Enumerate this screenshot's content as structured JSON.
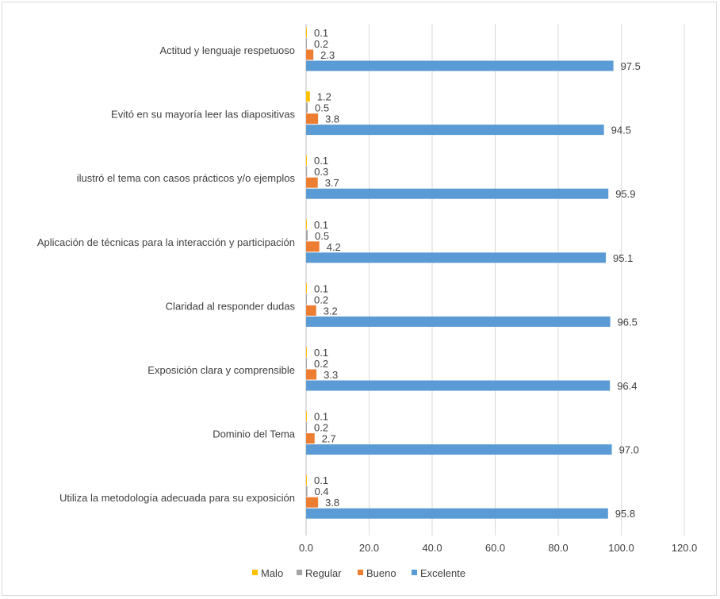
{
  "chart_data": {
    "type": "bar",
    "orientation": "horizontal",
    "categories": [
      "Actitud y lenguaje respetuoso",
      "Evitó en su mayoría leer las diapositivas",
      "ilustró el tema con casos prácticos y/o ejemplos",
      "Aplicación de técnicas para la interacción y participación",
      "Claridad al responder dudas",
      "Exposición clara y comprensible",
      "Dominio del Tema",
      "Utiliza la metodología adecuada para su exposición"
    ],
    "series": [
      {
        "name": "Malo",
        "color": "#FFC000",
        "values": [
          0.1,
          1.2,
          0.1,
          0.1,
          0.1,
          0.1,
          0.1,
          0.1
        ],
        "labels": [
          "0.1",
          "1.2",
          "0.1",
          "0.1",
          "0.1",
          "0.1",
          "0.1",
          "0.1"
        ]
      },
      {
        "name": "Regular",
        "color": "#A5A5A5",
        "values": [
          0.2,
          0.5,
          0.3,
          0.5,
          0.2,
          0.2,
          0.2,
          0.4
        ],
        "labels": [
          "0.2",
          "0.5",
          "0.3",
          "0.5",
          "0.2",
          "0.2",
          "0.2",
          "0.4"
        ]
      },
      {
        "name": "Bueno",
        "color": "#ED7D31",
        "values": [
          2.3,
          3.8,
          3.7,
          4.2,
          3.2,
          3.3,
          2.7,
          3.8
        ],
        "labels": [
          "2.3",
          "3.8",
          "3.7",
          "4.2",
          "3.2",
          "3.3",
          "2.7",
          "3.8"
        ]
      },
      {
        "name": "Excelente",
        "color": "#5B9BD5",
        "values": [
          97.5,
          94.5,
          95.9,
          95.1,
          96.5,
          96.4,
          97.0,
          95.8
        ],
        "labels": [
          "97.5",
          "94.5",
          "95.9",
          "95.1",
          "96.5",
          "96.4",
          "97.0",
          "95.8"
        ]
      }
    ],
    "xlim": [
      0,
      120
    ],
    "ticks": [
      0,
      20,
      40,
      60,
      80,
      100,
      120
    ],
    "tick_labels": [
      "0.0",
      "20.0",
      "40.0",
      "60.0",
      "80.0",
      "100.0",
      "120.0"
    ],
    "grid": true,
    "legend_position": "bottom"
  }
}
